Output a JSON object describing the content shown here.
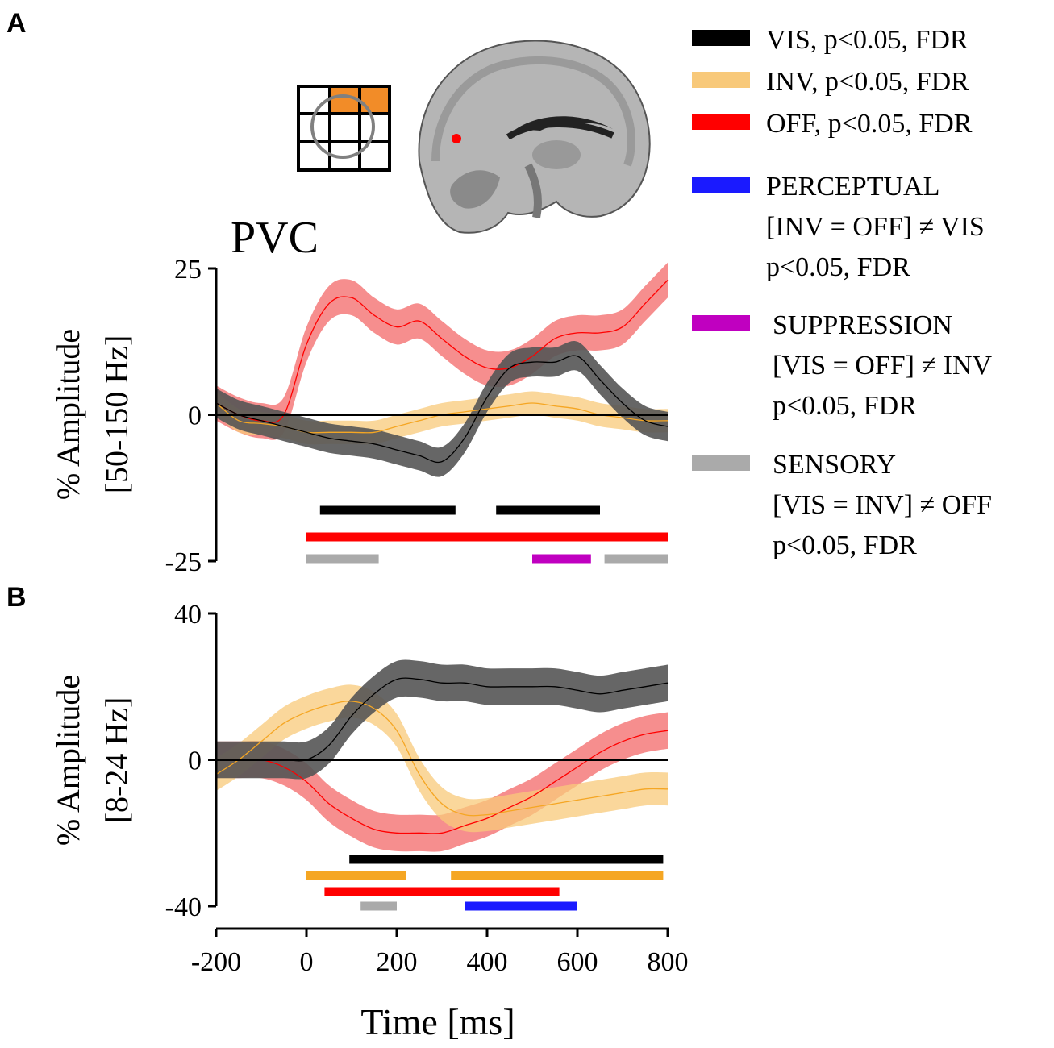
{
  "panel_a_label": "A",
  "panel_b_label": "B",
  "region_title": "PVC",
  "colors": {
    "vis": "#000000",
    "inv": "#f5a623",
    "inv_band": "#f8c97a",
    "off": "#ff0000",
    "off_band": "#f57a7a",
    "perceptual": "#1a1aff",
    "suppression": "#c000c0",
    "sensory": "#aaaaaa",
    "grid_fill": "#f28c28"
  },
  "legend": {
    "vis": "VIS, p<0.05, FDR",
    "inv": "INV, p<0.05, FDR",
    "off": "OFF, p<0.05, FDR",
    "perceptual_l1": "PERCEPTUAL",
    "perceptual_l2": "[INV = OFF] ≠ VIS",
    "perceptual_l3": "p<0.05, FDR",
    "suppression_l1": "SUPPRESSION",
    "suppression_l2": "[VIS = OFF] ≠ INV",
    "suppression_l3": "p<0.05, FDR",
    "sensory_l1": "SENSORY",
    "sensory_l2": "[VIS = INV] ≠ OFF",
    "sensory_l3": "p<0.05, FDR"
  },
  "chart_data": [
    {
      "panel": "A",
      "type": "line",
      "title": "PVC",
      "ylabel_line1": "% Amplitude",
      "ylabel_line2": "[50-150 Hz]",
      "xlim": [
        -200,
        800
      ],
      "ylim": [
        -25,
        25
      ],
      "yticks": [
        "25",
        "0",
        "-25"
      ],
      "ytick_values": [
        25,
        0,
        -25
      ],
      "x": [
        -200,
        -150,
        -100,
        -50,
        0,
        50,
        100,
        150,
        200,
        250,
        300,
        350,
        400,
        450,
        500,
        550,
        600,
        650,
        700,
        750,
        800
      ],
      "series": [
        {
          "name": "VIS",
          "values": [
            2,
            0,
            -1,
            -2,
            -3,
            -4,
            -4.5,
            -5,
            -6,
            -7,
            -8,
            -4,
            3,
            8,
            9,
            9,
            10,
            6,
            2,
            -1,
            -2
          ],
          "band": 2.5
        },
        {
          "name": "INV",
          "values": [
            2,
            -1,
            -1.5,
            -2,
            -3,
            -3,
            -3,
            -3,
            -2,
            -1,
            0,
            0.5,
            1,
            1.5,
            2,
            1.5,
            1,
            0,
            -0.5,
            -1,
            -1
          ],
          "band": 2
        },
        {
          "name": "OFF",
          "values": [
            2,
            0,
            -1,
            0,
            12,
            19,
            20,
            17,
            15,
            16,
            13,
            10,
            8,
            8,
            10,
            13,
            14,
            14,
            15,
            19,
            23
          ],
          "band": 3
        }
      ],
      "significance": [
        {
          "name": "VIS",
          "segments": [
            [
              30,
              330
            ],
            [
              420,
              650
            ]
          ]
        },
        {
          "name": "OFF",
          "segments": [
            [
              0,
              800
            ]
          ]
        },
        {
          "name": "SENSORY",
          "segments": [
            [
              0,
              160
            ],
            [
              660,
              800
            ]
          ]
        },
        {
          "name": "SUPPRESSION",
          "segments": [
            [
              500,
              630
            ]
          ]
        }
      ]
    },
    {
      "panel": "B",
      "type": "line",
      "ylabel_line1": "% Amplitude",
      "ylabel_line2": "[8-24 Hz]",
      "xlabel": "Time [ms]",
      "xlim": [
        -200,
        800
      ],
      "ylim": [
        -40,
        40
      ],
      "yticks": [
        "40",
        "0",
        "-40"
      ],
      "ytick_values": [
        40,
        0,
        -40
      ],
      "xticks": [
        "-200",
        "0",
        "200",
        "400",
        "600",
        "800"
      ],
      "xtick_values": [
        -200,
        0,
        200,
        400,
        600,
        800
      ],
      "x": [
        -200,
        -150,
        -100,
        -50,
        0,
        50,
        100,
        150,
        200,
        250,
        300,
        350,
        400,
        450,
        500,
        550,
        600,
        650,
        700,
        750,
        800
      ],
      "series": [
        {
          "name": "VIS",
          "values": [
            0,
            0,
            0,
            0,
            0,
            4,
            12,
            18,
            22,
            22,
            21,
            21,
            20,
            20,
            20,
            20,
            19,
            18,
            19,
            20,
            21
          ],
          "band": 5
        },
        {
          "name": "INV",
          "values": [
            -4,
            0,
            5,
            10,
            13,
            15,
            16,
            14,
            8,
            -4,
            -12,
            -15,
            -15,
            -14,
            -13,
            -12,
            -11,
            -10,
            -9,
            -8,
            -8
          ],
          "band": 4.5
        },
        {
          "name": "OFF",
          "values": [
            0,
            0,
            0,
            -2,
            -6,
            -12,
            -16,
            -19,
            -20,
            -20,
            -20,
            -18,
            -16,
            -13,
            -10,
            -6,
            -2,
            2,
            5,
            7,
            8
          ],
          "band": 5
        }
      ],
      "significance": [
        {
          "name": "VIS",
          "segments": [
            [
              95,
              790
            ]
          ]
        },
        {
          "name": "INV",
          "segments": [
            [
              0,
              220
            ],
            [
              320,
              790
            ]
          ]
        },
        {
          "name": "OFF",
          "segments": [
            [
              40,
              560
            ]
          ]
        },
        {
          "name": "SENSORY",
          "segments": [
            [
              120,
              200
            ]
          ]
        },
        {
          "name": "PERCEPTUAL",
          "segments": [
            [
              350,
              600
            ]
          ]
        }
      ]
    }
  ]
}
